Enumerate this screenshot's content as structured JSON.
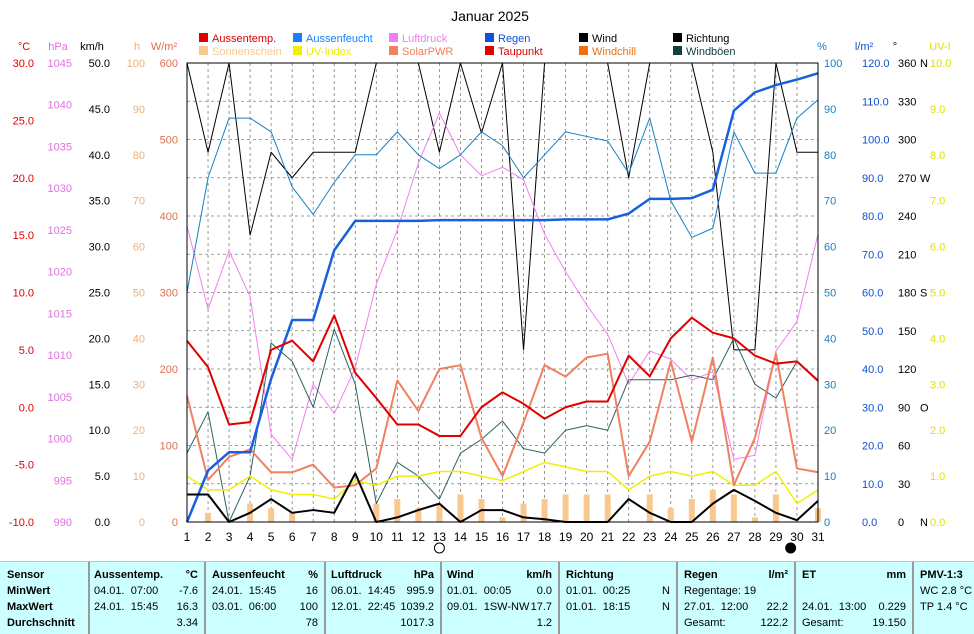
{
  "title": "Januar 2025",
  "axes": {
    "left": [
      {
        "unit": "°C",
        "color": "#e00000",
        "ticks": [
          "30.0",
          "25.0",
          "20.0",
          "15.0",
          "10.0",
          "5.0",
          "0.0",
          "-5.0",
          "-10.0"
        ]
      },
      {
        "unit": "hPa",
        "color": "#e070e0",
        "ticks": [
          "1045",
          "1040",
          "1035",
          "1030",
          "1025",
          "1020",
          "1015",
          "1010",
          "1005",
          "1000",
          "995",
          "990"
        ]
      },
      {
        "unit": "km/h",
        "color": "#000000",
        "ticks": [
          "50.0",
          "45.0",
          "40.0",
          "35.0",
          "30.0",
          "25.0",
          "20.0",
          "15.0",
          "10.0",
          "5.0",
          "0.0"
        ]
      },
      {
        "unit": "h",
        "color": "#f0b070",
        "ticks": [
          "100",
          "90",
          "80",
          "70",
          "60",
          "50",
          "40",
          "30",
          "20",
          "10",
          "0"
        ]
      },
      {
        "unit": "W/m²",
        "color": "#e07050",
        "ticks": [
          "600",
          "500",
          "400",
          "300",
          "200",
          "100",
          "0"
        ]
      }
    ],
    "right": [
      {
        "unit": "%",
        "color": "#1880c0",
        "ticks": [
          "100",
          "90",
          "80",
          "70",
          "60",
          "50",
          "40",
          "30",
          "20",
          "10",
          "0"
        ]
      },
      {
        "unit": "l/m²",
        "color": "#1050d0",
        "ticks": [
          "120.0",
          "110.0",
          "100.0",
          "90.0",
          "80.0",
          "70.0",
          "60.0",
          "50.0",
          "40.0",
          "30.0",
          "20.0",
          "10.0",
          "0.0"
        ]
      },
      {
        "unit": "°",
        "color": "#000000",
        "ticks": [
          "360",
          "330",
          "300",
          "270",
          "240",
          "210",
          "180",
          "150",
          "120",
          "90",
          "60",
          "30",
          "0"
        ],
        "dirs": [
          "N",
          "W",
          "S",
          "O",
          "N"
        ]
      },
      {
        "unit": "UV-I",
        "color": "#e0e000",
        "ticks": [
          "10.0",
          "9.0",
          "8.0",
          "7.0",
          "6.0",
          "5.0",
          "4.0",
          "3.0",
          "2.0",
          "1.0",
          "0.0"
        ]
      }
    ],
    "x_ticks": [
      "1",
      "2",
      "3",
      "4",
      "5",
      "6",
      "7",
      "8",
      "9",
      "10",
      "11",
      "12",
      "13",
      "14",
      "15",
      "16",
      "17",
      "18",
      "19",
      "20",
      "21",
      "22",
      "23",
      "24",
      "25",
      "26",
      "27",
      "28",
      "29",
      "30",
      "31"
    ]
  },
  "legend": [
    {
      "label": "Aussentemp.",
      "color": "#e00000"
    },
    {
      "label": "Aussenfeucht",
      "color": "#1880ff"
    },
    {
      "label": "Luftdruck",
      "color": "#f080f0"
    },
    {
      "label": "Regen",
      "color": "#1050e0"
    },
    {
      "label": "Wind",
      "color": "#000000"
    },
    {
      "label": "Richtung",
      "color": "#000000"
    },
    {
      "label": "Sonnenschein",
      "color": "#f8c890"
    },
    {
      "label": "UV-Index",
      "color": "#f0f000"
    },
    {
      "label": "SolarPWR",
      "color": "#f08060"
    },
    {
      "label": "Taupunkt",
      "color": "#e00000"
    },
    {
      "label": "Windchill",
      "color": "#f07010"
    },
    {
      "label": "Windböen",
      "color": "#104040"
    }
  ],
  "chart_data": {
    "type": "line",
    "title": "Januar 2025",
    "x": [
      1,
      2,
      3,
      4,
      5,
      6,
      7,
      8,
      9,
      10,
      11,
      12,
      13,
      14,
      15,
      16,
      17,
      18,
      19,
      20,
      21,
      22,
      23,
      24,
      25,
      26,
      27,
      28,
      29,
      30,
      31
    ],
    "moon_phases": [
      {
        "day": 13,
        "phase": "full"
      },
      {
        "day": 29.7,
        "phase": "new"
      }
    ],
    "series": [
      {
        "name": "Aussentemp.",
        "unit": "°C",
        "color": "#e00000",
        "values": [
          5.8,
          3.5,
          -1.5,
          -1.3,
          5.0,
          5.8,
          4.0,
          8.0,
          3.0,
          0.8,
          -1.5,
          -1.5,
          -2.5,
          -2.5,
          0.0,
          1.3,
          0.3,
          -1.0,
          0.0,
          0.5,
          0.5,
          4.5,
          2.7,
          6.0,
          7.8,
          6.5,
          6.0,
          4.5,
          3.8,
          4.0,
          2.3
        ]
      },
      {
        "name": "Aussenfeucht",
        "unit": "%",
        "color": "#1880c0",
        "values": [
          50,
          75,
          88,
          88,
          85,
          73,
          67,
          74,
          80,
          80,
          85,
          80,
          77,
          80,
          85,
          82,
          75,
          80,
          85,
          84,
          83,
          76,
          88,
          70,
          62,
          64,
          85,
          76,
          76,
          88,
          92
        ]
      },
      {
        "name": "Luftdruck",
        "unit": "hPa",
        "color": "#e070e0",
        "values": [
          1025.5,
          1015.5,
          1022.5,
          1017.0,
          1000.5,
          997.5,
          1006.5,
          1003.0,
          1008.5,
          1018.5,
          1025.0,
          1033.0,
          1039.0,
          1034.0,
          1031.5,
          1032.5,
          1031.0,
          1024.5,
          1020.0,
          1016.0,
          1012.5,
          1006.5,
          1010.5,
          1009.5,
          1007.0,
          1008.0,
          997.5,
          998.0,
          1010.5,
          1014.0,
          1024.5
        ]
      },
      {
        "name": "Regen",
        "unit": "l/m²",
        "color": "#1050d0",
        "values": [
          0.0,
          14.0,
          19.0,
          19.0,
          39.0,
          55.0,
          55.0,
          74.0,
          82.0,
          82.0,
          82.0,
          82.0,
          82.2,
          82.2,
          82.2,
          82.2,
          82.2,
          82.2,
          82.4,
          82.4,
          82.4,
          84.0,
          88.0,
          88.0,
          88.2,
          90.5,
          112.0,
          117.0,
          119.0,
          120.5,
          122.2
        ]
      },
      {
        "name": "Wind",
        "unit": "km/h",
        "color": "#000000",
        "values": [
          3.0,
          3.0,
          0.0,
          1.0,
          2.5,
          1.0,
          1.3,
          1.0,
          5.3,
          0.0,
          0.5,
          1.3,
          2.0,
          0.0,
          1.3,
          1.3,
          0.5,
          0.3,
          0.0,
          0.0,
          0.0,
          2.5,
          1.0,
          0.0,
          0.0,
          2.0,
          3.5,
          2.3,
          1.0,
          0.2,
          2.3
        ]
      },
      {
        "name": "Richtung",
        "unit": "°",
        "color": "#000000",
        "values": [
          360,
          290,
          360,
          225,
          290,
          270,
          290,
          290,
          290,
          360,
          360,
          360,
          290,
          360,
          305,
          360,
          135,
          360,
          360,
          360,
          360,
          270,
          360,
          360,
          360,
          290,
          135,
          135,
          360,
          290,
          290
        ]
      },
      {
        "name": "Taupunkt",
        "unit": "°C",
        "color": "#f08070",
        "values": [
          0.3,
          -4.5,
          -5.0,
          -2.8,
          -4.0,
          -4.0,
          -3.5,
          -5.8,
          -5.5,
          -4.0,
          1.5,
          -1.0,
          1.8,
          2.3,
          -3.3,
          -7.0,
          -3.5,
          2.3,
          1.3,
          2.3,
          2.5,
          -6.5,
          -3.5,
          1.8,
          -7.8,
          4.0,
          -4.5,
          -5.5,
          5.0,
          -8.0,
          -8.0
        ]
      },
      {
        "name": "Windböen",
        "unit": "km/h",
        "color": "#104040",
        "values": [
          7.5,
          12.0,
          0.0,
          5.0,
          19.5,
          17.5,
          12.5,
          21.0,
          15.0,
          2.0,
          6.5,
          5.0,
          2.5,
          7.5,
          9.0,
          11.0,
          8.0,
          7.5,
          10.0,
          10.5,
          10.0,
          15.5,
          15.5,
          15.5,
          16.0,
          15.5,
          20.0,
          15.0,
          13.5,
          17.5,
          15.5
        ]
      },
      {
        "name": "SolarPWR",
        "unit": "W/m²",
        "color": "#e07050",
        "values": [
          165,
          55,
          85,
          95,
          65,
          65,
          75,
          45,
          48,
          70,
          185,
          145,
          200,
          205,
          110,
          60,
          130,
          205,
          190,
          215,
          220,
          60,
          105,
          210,
          105,
          215,
          48,
          110,
          220,
          70,
          65
        ]
      },
      {
        "name": "UV-Index",
        "unit": "UV-I",
        "color": "#e0e000",
        "values": [
          1.0,
          0.7,
          0.7,
          1.0,
          0.7,
          0.6,
          0.6,
          0.5,
          0.9,
          0.8,
          1.0,
          1.0,
          1.1,
          1.1,
          1.0,
          0.9,
          1.1,
          1.3,
          1.2,
          1.1,
          1.1,
          0.7,
          1.0,
          1.1,
          1.0,
          1.1,
          0.8,
          0.8,
          1.1,
          0.4,
          0.7
        ]
      },
      {
        "name": "Sonnenschein",
        "unit": "h",
        "color": "#f8c890",
        "values": [
          0,
          2,
          0,
          4,
          3,
          2,
          0,
          0,
          0,
          4,
          5,
          3,
          4,
          6,
          5,
          1,
          4,
          5,
          6,
          6,
          6,
          0,
          6,
          3,
          5,
          7,
          6,
          1,
          6,
          0,
          3
        ]
      }
    ]
  },
  "stats": {
    "sensor": {
      "header": "Sensor",
      "rows": [
        "MinWert",
        "MaxWert",
        "Durchschnitt"
      ]
    },
    "temp": {
      "header": "Aussentemp.",
      "unit": "°C",
      "min": "04.01.  07:00",
      "min_v": "-7.6",
      "max": "24.01.  15:45",
      "max_v": "16.3",
      "avg_v": "3.34"
    },
    "hum": {
      "header": "Aussenfeucht",
      "unit": "%",
      "min": "24.01.  15:45",
      "min_v": "16",
      "max": "03.01.  06:00",
      "max_v": "100",
      "avg_v": "78"
    },
    "press": {
      "header": "Luftdruck",
      "unit": "hPa",
      "min": "06.01.  14:45",
      "min_v": "995.9",
      "max": "12.01.  22:45",
      "max_v": "1039.2",
      "avg_v": "1017.3"
    },
    "wind": {
      "header": "Wind",
      "unit": "km/h",
      "min": "01.01.  00:05",
      "min_v": "0.0",
      "max": "09.01.  1SW-NW",
      "max_v": "17.7",
      "avg_v": "1.2"
    },
    "dir": {
      "header": "Richtung",
      "min": "01.01.  00:25",
      "min_v": "N",
      "max": "01.01.  18:15",
      "max_v": "N"
    },
    "rain": {
      "header": "Regen",
      "unit": "l/m²",
      "row1": "Regentage: 19",
      "row2": "27.01.  12:00",
      "row2_v": "22.2",
      "row3": "Gesamt:",
      "row3_v": "122.2"
    },
    "et": {
      "header": "ET",
      "unit": "mm",
      "row2": "24.01.  13:00",
      "row2_v": "0.229",
      "row3": "Gesamt:",
      "row3_v": "19.150"
    },
    "pmv": {
      "header": "PMV-1:3",
      "row1": "WC 2.8 °C",
      "row2": "TP 1.4 °C"
    }
  }
}
